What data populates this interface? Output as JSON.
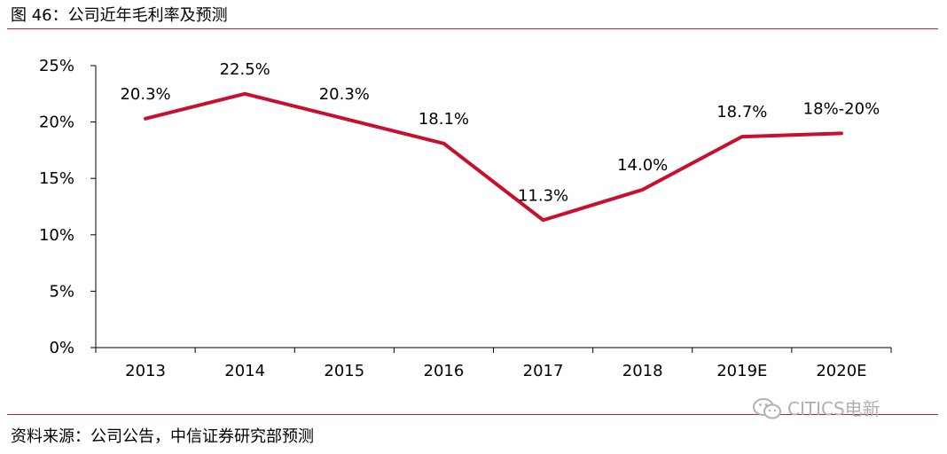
{
  "header": {
    "title": "图 46：公司近年毛利率及预测"
  },
  "footer": {
    "source": "资料来源：公司公告，中信证券研究部预测"
  },
  "watermark": {
    "text": "CITICS电新",
    "icon": "wechat-icon"
  },
  "colors": {
    "line": "#c8102e",
    "rule": "#b3282d",
    "axis": "#000000"
  },
  "chart_data": {
    "type": "line",
    "title": "公司近年毛利率及预测",
    "categories": [
      "2013",
      "2014",
      "2015",
      "2016",
      "2017",
      "2018",
      "2019E",
      "2020E"
    ],
    "series": [
      {
        "name": "毛利率",
        "values": [
          20.3,
          22.5,
          20.3,
          18.1,
          11.3,
          14.0,
          18.7,
          19.0
        ]
      }
    ],
    "data_labels": [
      "20.3%",
      "22.5%",
      "20.3%",
      "18.1%",
      "11.3%",
      "14.0%",
      "18.7%",
      "18%-20%"
    ],
    "yticks": [
      "0%",
      "5%",
      "10%",
      "15%",
      "20%",
      "25%"
    ],
    "ytick_values": [
      0,
      5,
      10,
      15,
      20,
      25
    ],
    "ylim": [
      0,
      25
    ],
    "xlabel": "",
    "ylabel": "",
    "grid": false,
    "legend": "none"
  }
}
